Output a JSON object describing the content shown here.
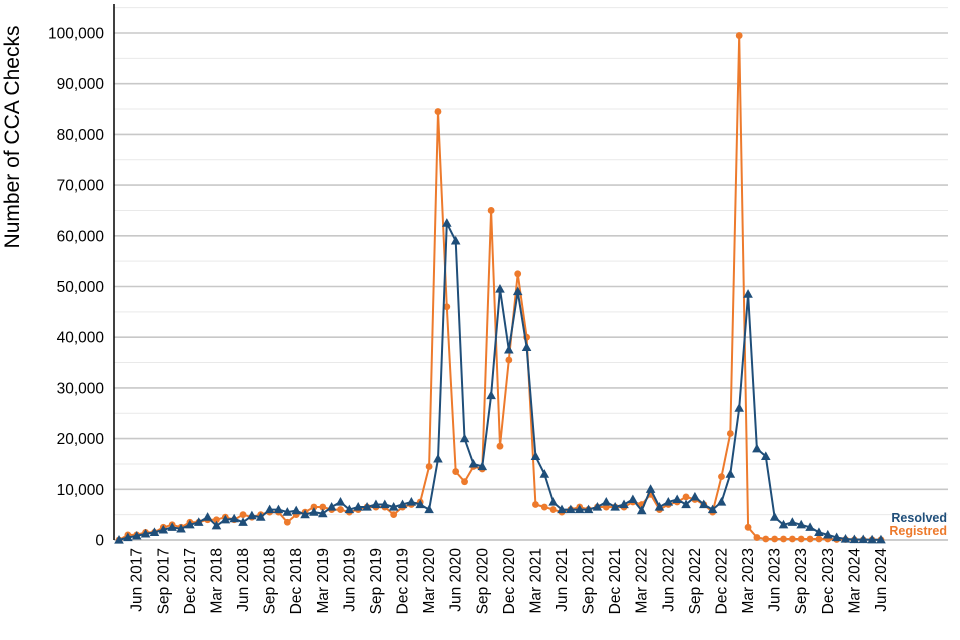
{
  "chart_data": {
    "type": "line",
    "title": "",
    "xlabel": "",
    "ylabel": "Number of CCA Checks",
    "ylim": [
      0,
      105000
    ],
    "y_ticks": [
      0,
      10000,
      20000,
      30000,
      40000,
      50000,
      60000,
      70000,
      80000,
      90000,
      100000
    ],
    "y_tick_labels": [
      "0",
      "10,000",
      "20,000",
      "30,000",
      "40,000",
      "50,000",
      "60,000",
      "70,000",
      "80,000",
      "90,000",
      "100,000"
    ],
    "x_start": "Apr 2017",
    "x_tick_labels": [
      "Jun 2017",
      "Sep 2017",
      "Dec 2017",
      "Mar 2018",
      "Jun 2018",
      "Sep 2018",
      "Dec 2018",
      "Mar 2019",
      "Jun 2019",
      "Sep 2019",
      "Dec 2019",
      "Mar 2020",
      "Jun 2020",
      "Sep 2020",
      "Dec 2020",
      "Mar 2021",
      "Jun 2021",
      "Sep 2021",
      "Dec 2021",
      "Mar 2022",
      "Jun 2022",
      "Sep 2022",
      "Dec 2022",
      "Mar 2023",
      "Jun 2023",
      "Sep 2023",
      "Dec 2023",
      "Mar 2024",
      "Jun 2024"
    ],
    "grid": true,
    "legend_position": "bottom-right",
    "series": [
      {
        "name": "Resolved",
        "color": "#1f4e79",
        "marker": "triangle",
        "values": [
          0,
          500,
          800,
          1200,
          1500,
          2000,
          2500,
          2200,
          3000,
          3500,
          4500,
          2800,
          4000,
          4200,
          3500,
          4800,
          4500,
          6000,
          6000,
          5500,
          5800,
          5000,
          5500,
          5200,
          6500,
          7500,
          6000,
          6500,
          6500,
          7000,
          7000,
          6500,
          7000,
          7500,
          7000,
          6000,
          16000,
          62500,
          59000,
          20000,
          15000,
          14500,
          28500,
          49500,
          37500,
          49000,
          38000,
          16500,
          13000,
          7500,
          6000,
          6000,
          6000,
          6000,
          6500,
          7500,
          6500,
          7000,
          8000,
          5800,
          10000,
          6500,
          7500,
          8000,
          7000,
          8500,
          7000,
          6000,
          7500,
          13000,
          26000,
          48500,
          18000,
          16500,
          4500,
          3000,
          3500,
          3000,
          2500,
          1500,
          1000,
          500,
          200,
          100,
          100,
          50,
          50
        ]
      },
      {
        "name": "Registred",
        "color": "#ed7a2c",
        "marker": "circle",
        "values": [
          0,
          1000,
          1000,
          1500,
          1500,
          2500,
          3000,
          2500,
          3500,
          3500,
          4000,
          4000,
          4500,
          4000,
          5000,
          4500,
          5000,
          5500,
          5500,
          3500,
          5000,
          5500,
          6500,
          6500,
          6000,
          6000,
          5500,
          6000,
          6500,
          6500,
          6500,
          5000,
          6500,
          7000,
          7500,
          14500,
          84500,
          46000,
          13500,
          11500,
          14500,
          14000,
          65000,
          18500,
          35500,
          52500,
          40000,
          7000,
          6500,
          6000,
          5500,
          6000,
          6500,
          6000,
          6500,
          6500,
          6500,
          6500,
          7500,
          7000,
          9000,
          6000,
          7000,
          7500,
          8500,
          8000,
          7000,
          5500,
          12500,
          21000,
          99500,
          2500,
          500,
          200,
          200,
          200,
          200,
          200,
          200,
          200,
          200,
          100,
          100,
          50,
          50,
          50,
          50
        ]
      }
    ]
  }
}
